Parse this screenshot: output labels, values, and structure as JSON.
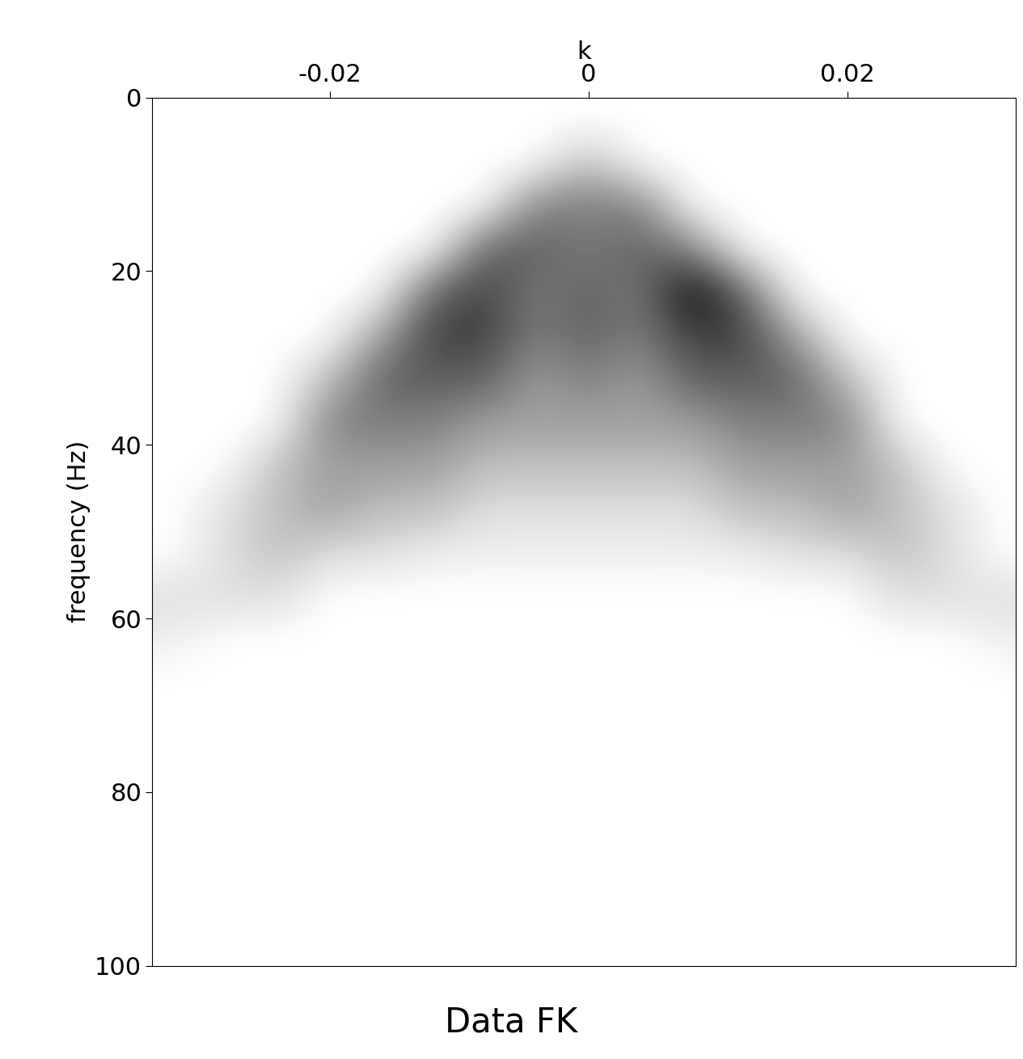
{
  "chart_data": {
    "type": "heatmap",
    "title": "Data FK",
    "x_label": "k",
    "y_label": "frequency (Hz)",
    "xlim": [
      -0.0337,
      0.033
    ],
    "ylim": [
      100,
      0
    ],
    "xticks": [
      -0.02,
      0,
      0.02
    ],
    "yticks": [
      0,
      20,
      40,
      60,
      80,
      100
    ],
    "color": "gray_r",
    "grid": false,
    "k_edges": [
      -0.034,
      -0.03,
      -0.026,
      -0.022,
      -0.018,
      -0.014,
      -0.01,
      -0.006,
      -0.002,
      0.002,
      0.006,
      0.01,
      0.014,
      0.018,
      0.022,
      0.026,
      0.03,
      0.034
    ],
    "f_edges": [
      0,
      5,
      10,
      15,
      20,
      25,
      30,
      35,
      40,
      45,
      50,
      55,
      60,
      65,
      70,
      75,
      80,
      85,
      90,
      95,
      100
    ],
    "cells": [
      [
        0,
        0,
        0,
        0,
        0,
        0,
        0,
        0,
        0,
        0,
        0,
        0,
        0,
        0,
        0,
        0,
        0
      ],
      [
        0,
        0,
        0,
        0,
        0,
        0,
        0,
        0,
        2,
        0,
        0,
        0,
        0,
        0,
        0,
        0,
        0
      ],
      [
        0,
        0,
        0,
        0,
        0,
        0,
        0,
        4,
        4,
        4,
        0,
        0,
        0,
        0,
        0,
        0,
        0
      ],
      [
        0,
        0,
        0,
        0,
        0,
        0,
        5,
        5,
        4,
        5,
        4,
        0,
        0,
        0,
        0,
        0,
        0
      ],
      [
        0,
        0,
        0,
        0,
        0,
        5,
        6,
        4,
        5,
        4,
        8,
        5,
        0,
        0,
        0,
        0,
        0
      ],
      [
        0,
        0,
        0,
        0,
        3,
        6,
        6,
        4,
        5,
        4,
        6,
        6,
        3,
        0,
        0,
        0,
        0
      ],
      [
        0,
        0,
        0,
        2,
        5,
        5,
        5,
        3,
        4,
        3,
        5,
        5,
        5,
        2,
        0,
        0,
        0
      ],
      [
        0,
        0,
        0,
        4,
        4,
        4,
        3,
        3,
        3,
        3,
        3,
        4,
        4,
        4,
        0,
        0,
        0
      ],
      [
        0,
        0,
        2,
        3,
        3,
        3,
        2,
        2,
        2,
        2,
        2,
        3,
        3,
        3,
        2,
        0,
        0
      ],
      [
        0,
        1,
        2,
        3,
        2,
        2,
        1,
        1,
        1,
        1,
        1,
        2,
        2,
        3,
        2,
        1,
        0
      ],
      [
        0,
        1,
        2,
        1,
        1,
        0.5,
        0.5,
        0.5,
        0.5,
        0.5,
        0.5,
        0.5,
        1,
        1,
        2,
        1,
        0
      ],
      [
        1,
        1,
        1,
        0,
        0,
        0,
        0,
        0,
        0,
        0,
        0,
        0,
        0,
        0,
        1,
        1,
        1
      ],
      [
        0.5,
        0,
        0,
        0,
        0,
        0,
        0,
        0,
        0,
        0,
        0,
        0,
        0,
        0,
        0,
        0,
        0.5
      ],
      [
        0,
        0,
        0,
        0,
        0,
        0,
        0,
        0,
        0,
        0,
        0,
        0,
        0,
        0,
        0,
        0,
        0
      ],
      [
        0,
        0,
        0,
        0,
        0,
        0,
        0,
        0,
        0,
        0,
        0,
        0,
        0,
        0,
        0,
        0,
        0
      ],
      [
        0,
        0,
        0,
        0,
        0,
        0,
        0,
        0,
        0,
        0,
        0,
        0,
        0,
        0,
        0,
        0,
        0
      ],
      [
        0,
        0,
        0,
        0,
        0,
        0,
        0,
        0,
        0,
        0,
        0,
        0,
        0,
        0,
        0,
        0,
        0
      ],
      [
        0,
        0,
        0,
        0,
        0,
        0,
        0,
        0,
        0,
        0,
        0,
        0,
        0,
        0,
        0,
        0,
        0
      ],
      [
        0,
        0,
        0,
        0,
        0,
        0,
        0,
        0,
        0,
        0,
        0,
        0,
        0,
        0,
        0,
        0,
        0
      ],
      [
        0,
        0,
        0,
        0,
        0,
        0,
        0,
        0,
        0,
        0,
        0,
        0,
        0,
        0,
        0,
        0,
        0
      ]
    ]
  }
}
